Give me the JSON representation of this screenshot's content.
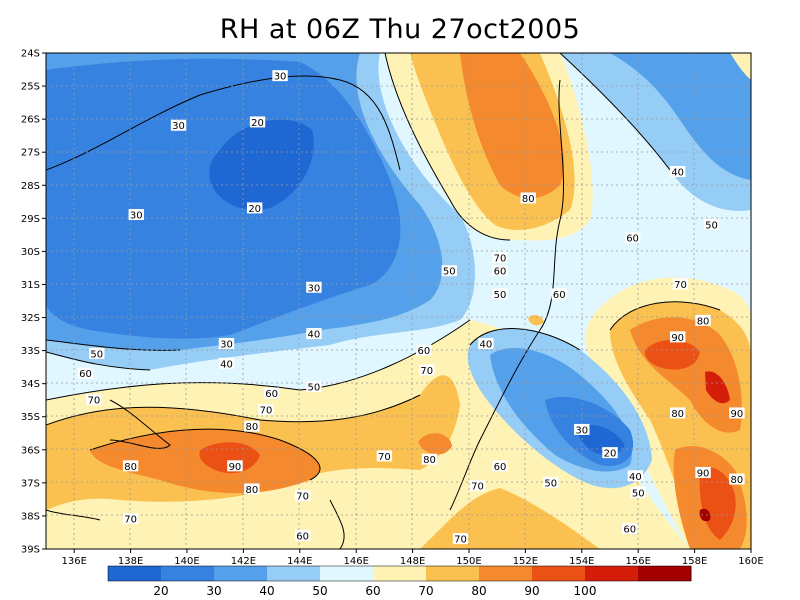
{
  "title": "RH at 06Z Thu 27oct2005",
  "axes": {
    "x_ticks": [
      "136E",
      "138E",
      "140E",
      "142E",
      "144E",
      "146E",
      "148E",
      "150E",
      "152E",
      "154E",
      "156E",
      "158E",
      "160E"
    ],
    "y_ticks": [
      "24S",
      "25S",
      "26S",
      "27S",
      "28S",
      "29S",
      "30S",
      "31S",
      "32S",
      "33S",
      "34S",
      "35S",
      "36S",
      "37S",
      "38S",
      "39S"
    ]
  },
  "colorbar": {
    "colors": [
      "#1f67d2",
      "#3682e0",
      "#55a0ea",
      "#96cdf6",
      "#e1f7ff",
      "#fef3b4",
      "#fbc150",
      "#f5892d",
      "#eb5015",
      "#d41e0a",
      "#a30000"
    ],
    "labels": [
      "20",
      "30",
      "40",
      "50",
      "60",
      "70",
      "80",
      "90",
      "100"
    ]
  },
  "contour_labels": [
    {
      "text": "30",
      "lon": 143.3,
      "lat": -24.7
    },
    {
      "text": "30",
      "lon": 139.7,
      "lat": -26.2
    },
    {
      "text": "20",
      "lon": 142.5,
      "lat": -26.1
    },
    {
      "text": "20",
      "lon": 142.4,
      "lat": -28.7
    },
    {
      "text": "30",
      "lon": 138.2,
      "lat": -28.9
    },
    {
      "text": "30",
      "lon": 144.5,
      "lat": -31.1
    },
    {
      "text": "40",
      "lon": 144.5,
      "lat": -32.5
    },
    {
      "text": "30",
      "lon": 141.4,
      "lat": -32.8
    },
    {
      "text": "40",
      "lon": 141.4,
      "lat": -33.4
    },
    {
      "text": "50",
      "lon": 136.8,
      "lat": -33.1
    },
    {
      "text": "60",
      "lon": 136.4,
      "lat": -33.7
    },
    {
      "text": "50",
      "lon": 144.5,
      "lat": -34.1
    },
    {
      "text": "60",
      "lon": 143.0,
      "lat": -34.3
    },
    {
      "text": "70",
      "lon": 136.7,
      "lat": -34.5
    },
    {
      "text": "70",
      "lon": 142.8,
      "lat": -34.8
    },
    {
      "text": "80",
      "lon": 142.3,
      "lat": -35.3
    },
    {
      "text": "90",
      "lon": 141.7,
      "lat": -36.5
    },
    {
      "text": "80",
      "lon": 138.0,
      "lat": -36.5
    },
    {
      "text": "80",
      "lon": 142.3,
      "lat": -37.2
    },
    {
      "text": "70",
      "lon": 144.1,
      "lat": -37.4
    },
    {
      "text": "70",
      "lon": 138.0,
      "lat": -38.1
    },
    {
      "text": "60",
      "lon": 144.1,
      "lat": -38.6
    },
    {
      "text": "70",
      "lon": 147.0,
      "lat": -36.2
    },
    {
      "text": "70",
      "lon": 148.5,
      "lat": -33.6
    },
    {
      "text": "60",
      "lon": 148.4,
      "lat": -33.0
    },
    {
      "text": "80",
      "lon": 148.6,
      "lat": -36.3
    },
    {
      "text": "50",
      "lon": 149.3,
      "lat": -30.6
    },
    {
      "text": "60",
      "lon": 151.1,
      "lat": -30.6
    },
    {
      "text": "70",
      "lon": 151.1,
      "lat": -30.2
    },
    {
      "text": "80",
      "lon": 152.1,
      "lat": -28.4
    },
    {
      "text": "50",
      "lon": 151.1,
      "lat": -31.3
    },
    {
      "text": "60",
      "lon": 153.2,
      "lat": -31.3
    },
    {
      "text": "60",
      "lon": 155.8,
      "lat": -29.6
    },
    {
      "text": "40",
      "lon": 150.6,
      "lat": -32.8
    },
    {
      "text": "30",
      "lon": 154.0,
      "lat": -35.4
    },
    {
      "text": "20",
      "lon": 155.0,
      "lat": -36.1
    },
    {
      "text": "40",
      "lon": 155.9,
      "lat": -36.8
    },
    {
      "text": "50",
      "lon": 152.9,
      "lat": -37.0
    },
    {
      "text": "50",
      "lon": 156.0,
      "lat": -37.3
    },
    {
      "text": "60",
      "lon": 151.1,
      "lat": -36.5
    },
    {
      "text": "70",
      "lon": 150.3,
      "lat": -37.1
    },
    {
      "text": "60",
      "lon": 155.7,
      "lat": -38.4
    },
    {
      "text": "70",
      "lon": 149.7,
      "lat": -38.7
    },
    {
      "text": "40",
      "lon": 157.4,
      "lat": -27.6
    },
    {
      "text": "50",
      "lon": 158.6,
      "lat": -29.2
    },
    {
      "text": "70",
      "lon": 157.5,
      "lat": -31.0
    },
    {
      "text": "80",
      "lon": 158.3,
      "lat": -32.1
    },
    {
      "text": "90",
      "lon": 157.4,
      "lat": -32.6
    },
    {
      "text": "80",
      "lon": 157.4,
      "lat": -34.9
    },
    {
      "text": "90",
      "lon": 159.5,
      "lat": -34.9
    },
    {
      "text": "90",
      "lon": 158.3,
      "lat": -36.7
    },
    {
      "text": "80",
      "lon": 159.5,
      "lat": -36.9
    }
  ]
}
